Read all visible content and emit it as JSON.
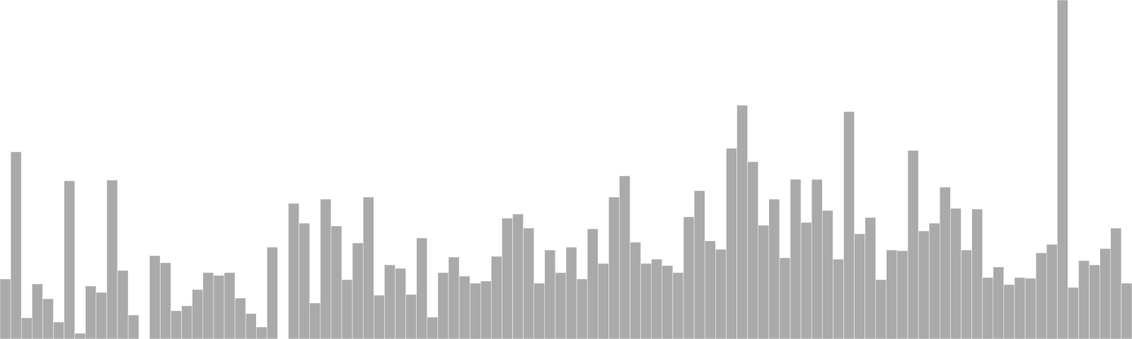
{
  "chart_data": {
    "type": "bar",
    "title": "",
    "xlabel": "",
    "ylabel": "",
    "ylim": [
      0,
      480
    ],
    "grid": false,
    "legend": "none",
    "bar_color": "#aaaaaa",
    "values": [
      85,
      265,
      30,
      78,
      57,
      24,
      224,
      8,
      75,
      66,
      225,
      97,
      34,
      0,
      118,
      108,
      40,
      47,
      70,
      94,
      90,
      94,
      58,
      36,
      17,
      130,
      0,
      192,
      164,
      51,
      198,
      160,
      84,
      136,
      201,
      62,
      105,
      100,
      63,
      143,
      31,
      94,
      116,
      89,
      79,
      82,
      117,
      171,
      177,
      157,
      79,
      126,
      94,
      130,
      85,
      156,
      107,
      201,
      231,
      137,
      107,
      113,
      104,
      94,
      173,
      210,
      139,
      127,
      270,
      331,
      251,
      161,
      198,
      115,
      226,
      165,
      226,
      182,
      113,
      322,
      149,
      172,
      84,
      126,
      125,
      267,
      153,
      164,
      215,
      185,
      126,
      184,
      87,
      102,
      77,
      87,
      86,
      122,
      134,
      480,
      73,
      111,
      105,
      128,
      157,
      79
    ]
  }
}
